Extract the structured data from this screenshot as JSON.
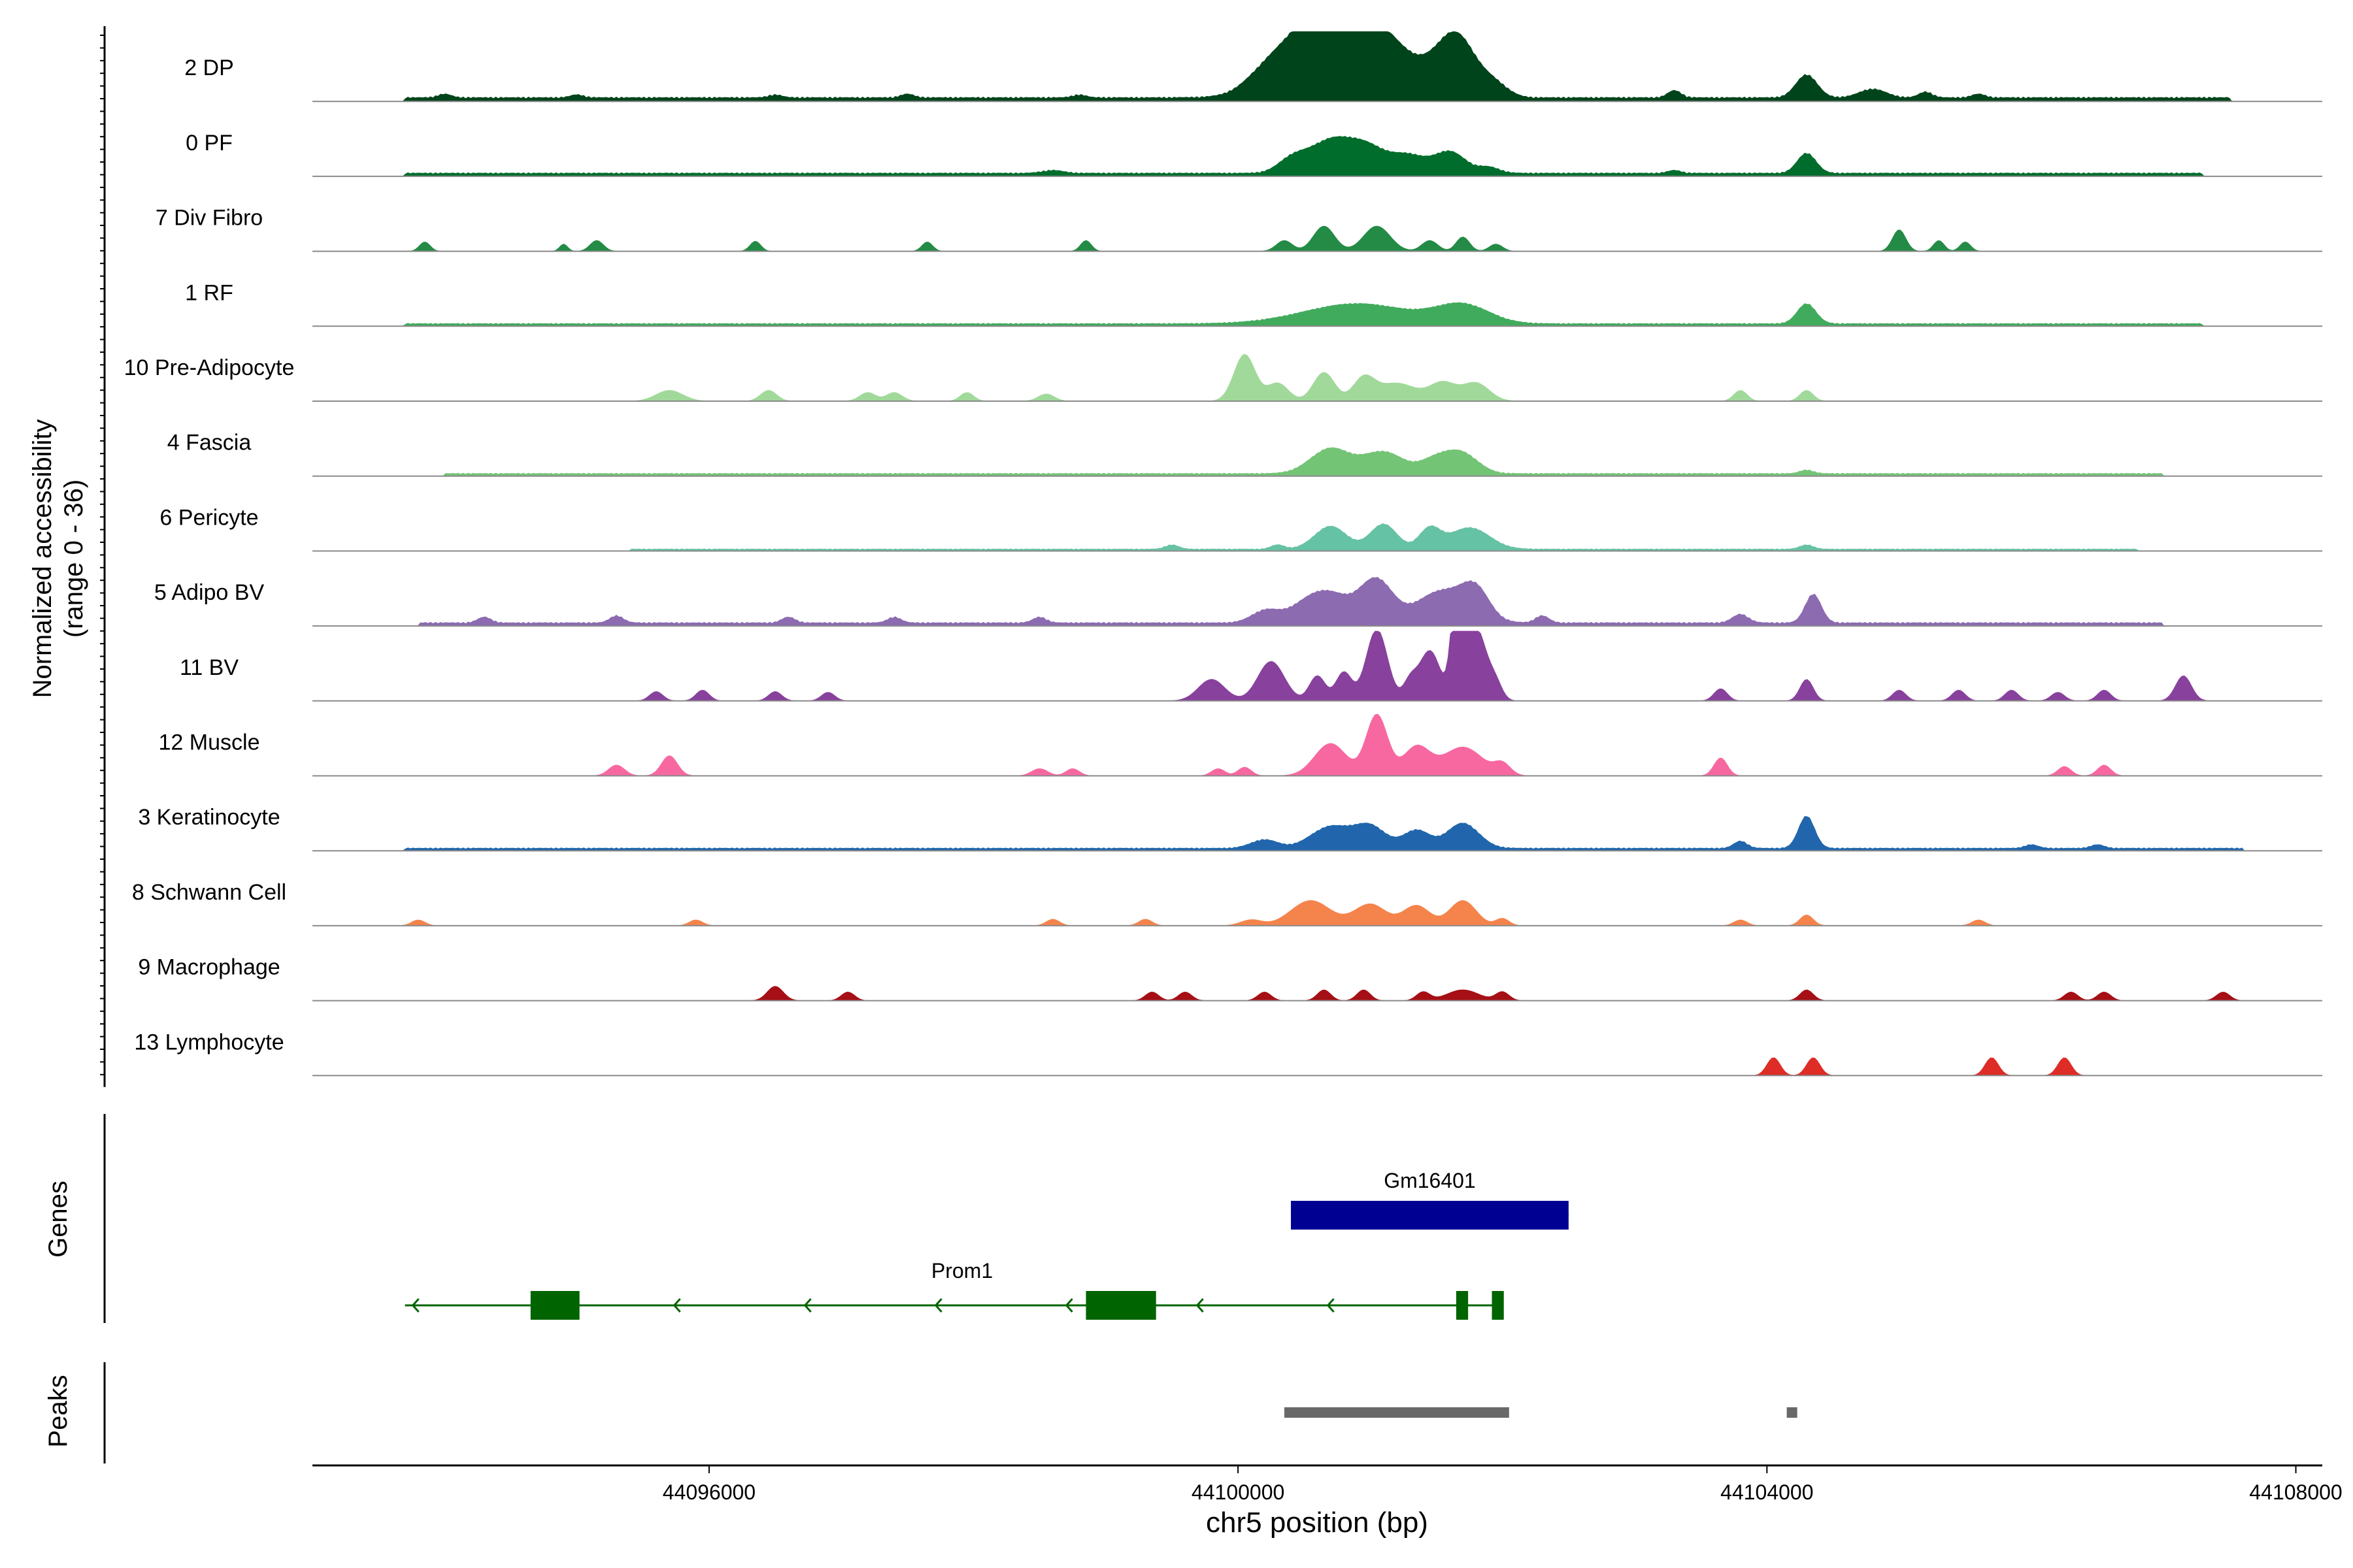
{
  "chart_data": {
    "type": "area",
    "title": "",
    "xlabel": "chr5 position (bp)",
    "ylabel_lines": [
      "Normalized accessibility",
      "(range 0 - 36)"
    ],
    "y_range": [
      0,
      36
    ],
    "xlim": [
      44093000,
      44108200
    ],
    "x_ticks": [
      44096000,
      44100000,
      44104000,
      44108000
    ],
    "x_tick_labels": [
      "44096000",
      "44100000",
      "44104000",
      "44108000"
    ],
    "panel_labels": {
      "genes": "Genes",
      "peaks": "Peaks"
    },
    "tracks": [
      {
        "name": "2 DP",
        "color": "#00441b",
        "baseline": [
          [
            44093700,
            44107500,
            0.6
          ]
        ],
        "peaks": [
          [
            44100700,
            0.32,
            7.5
          ],
          [
            44100550,
            0.2,
            4.5
          ],
          [
            44100950,
            0.18,
            5
          ],
          [
            44101250,
            0.2,
            4
          ],
          [
            44101650,
            0.15,
            8.5
          ],
          [
            44100200,
            0.15,
            2
          ],
          [
            44101950,
            0.1,
            1.5
          ],
          [
            44103300,
            0.05,
            1
          ],
          [
            44104300,
            0.08,
            3.2
          ],
          [
            44104800,
            0.1,
            1.2
          ],
          [
            44105200,
            0.05,
            0.8
          ],
          [
            44094000,
            0.05,
            0.5
          ],
          [
            44095000,
            0.05,
            0.4
          ],
          [
            44096500,
            0.05,
            0.4
          ],
          [
            44097500,
            0.05,
            0.5
          ],
          [
            44098800,
            0.05,
            0.4
          ],
          [
            44105600,
            0.05,
            0.5
          ]
        ]
      },
      {
        "name": "0 PF",
        "color": "#006d2c",
        "baseline": [
          [
            44093700,
            44107300,
            0.5
          ]
        ],
        "peaks": [
          [
            44100700,
            0.18,
            4.5
          ],
          [
            44101000,
            0.15,
            3
          ],
          [
            44101300,
            0.12,
            2.2
          ],
          [
            44101600,
            0.12,
            3
          ],
          [
            44100400,
            0.1,
            1.5
          ],
          [
            44101900,
            0.08,
            0.8
          ],
          [
            44104300,
            0.07,
            2.8
          ],
          [
            44098600,
            0.08,
            0.4
          ],
          [
            44103300,
            0.05,
            0.4
          ]
        ]
      },
      {
        "name": "7 Div Fibro",
        "color": "#238b45",
        "baseline": [],
        "peaks": [
          [
            44093850,
            0.04,
            1.3
          ],
          [
            44094900,
            0.03,
            1
          ],
          [
            44095150,
            0.05,
            1.5
          ],
          [
            44096350,
            0.04,
            1.4
          ],
          [
            44097650,
            0.04,
            1.3
          ],
          [
            44098850,
            0.04,
            1.5
          ],
          [
            44100350,
            0.06,
            1.5
          ],
          [
            44100650,
            0.08,
            3.5
          ],
          [
            44101050,
            0.1,
            3.5
          ],
          [
            44101450,
            0.06,
            1.5
          ],
          [
            44101700,
            0.05,
            2
          ],
          [
            44101950,
            0.05,
            1
          ],
          [
            44105000,
            0.05,
            3
          ],
          [
            44105300,
            0.04,
            1.5
          ],
          [
            44105500,
            0.04,
            1.3
          ]
        ]
      },
      {
        "name": "1 RF",
        "color": "#41ab5d",
        "baseline": [
          [
            44093700,
            44107300,
            0.4
          ]
        ],
        "peaks": [
          [
            44100900,
            0.4,
            2.8
          ],
          [
            44101700,
            0.2,
            2.5
          ],
          [
            44104300,
            0.07,
            2.8
          ]
        ]
      },
      {
        "name": "10 Pre-Adipocyte",
        "color": "#a1d99b",
        "baseline": [],
        "peaks": [
          [
            44095700,
            0.1,
            1.5
          ],
          [
            44096450,
            0.06,
            1.5
          ],
          [
            44097200,
            0.06,
            1.2
          ],
          [
            44097400,
            0.06,
            1.2
          ],
          [
            44097950,
            0.05,
            1.2
          ],
          [
            44098550,
            0.06,
            1
          ],
          [
            44100050,
            0.08,
            6.5
          ],
          [
            44100300,
            0.08,
            2.5
          ],
          [
            44100650,
            0.08,
            4
          ],
          [
            44100950,
            0.08,
            3
          ],
          [
            44101200,
            0.15,
            2.5
          ],
          [
            44101550,
            0.1,
            2.5
          ],
          [
            44101800,
            0.1,
            2.5
          ],
          [
            44103800,
            0.05,
            1.5
          ],
          [
            44104300,
            0.05,
            1.5
          ]
        ]
      },
      {
        "name": "4 Fascia",
        "color": "#74c476",
        "baseline": [
          [
            44094000,
            44107000,
            0.4
          ]
        ],
        "peaks": [
          [
            44100700,
            0.15,
            3.5
          ],
          [
            44101100,
            0.15,
            3
          ],
          [
            44101500,
            0.12,
            2
          ],
          [
            44101700,
            0.12,
            2.6
          ],
          [
            44104300,
            0.05,
            0.5
          ]
        ]
      },
      {
        "name": "6 Pericyte",
        "color": "#66c2a4",
        "baseline": [
          [
            44095400,
            44106800,
            0.3
          ]
        ],
        "peaks": [
          [
            44100700,
            0.12,
            3.2
          ],
          [
            44101100,
            0.1,
            3.5
          ],
          [
            44101450,
            0.08,
            2.8
          ],
          [
            44101750,
            0.15,
            3
          ],
          [
            44099500,
            0.05,
            0.6
          ],
          [
            44100300,
            0.05,
            0.6
          ],
          [
            44104300,
            0.05,
            0.6
          ]
        ]
      },
      {
        "name": "5 Adipo BV",
        "color": "#8c6bb1",
        "baseline": [
          [
            44093800,
            44107000,
            0.5
          ]
        ],
        "peaks": [
          [
            44100650,
            0.2,
            4.5
          ],
          [
            44101050,
            0.12,
            5.5
          ],
          [
            44101550,
            0.2,
            4.5
          ],
          [
            44101800,
            0.1,
            3.5
          ],
          [
            44100200,
            0.1,
            1.5
          ],
          [
            44104350,
            0.06,
            4
          ],
          [
            44103800,
            0.06,
            1.2
          ],
          [
            44102300,
            0.05,
            1
          ],
          [
            44094300,
            0.05,
            0.8
          ],
          [
            44095300,
            0.05,
            1
          ],
          [
            44096600,
            0.05,
            0.8
          ],
          [
            44097400,
            0.05,
            0.8
          ],
          [
            44098500,
            0.05,
            0.8
          ]
        ]
      },
      {
        "name": "11 BV",
        "color": "#88419d",
        "baseline": [],
        "peaks": [
          [
            44099800,
            0.1,
            3
          ],
          [
            44100250,
            0.1,
            5.5
          ],
          [
            44100600,
            0.06,
            3.5
          ],
          [
            44100800,
            0.06,
            4
          ],
          [
            44101050,
            0.08,
            10
          ],
          [
            44101300,
            0.05,
            2.5
          ],
          [
            44101450,
            0.08,
            7
          ],
          [
            44101700,
            0.05,
            6
          ],
          [
            44101800,
            0.08,
            10
          ],
          [
            44101650,
            0.04,
            12
          ],
          [
            44101950,
            0.05,
            2
          ],
          [
            44095600,
            0.05,
            1.3
          ],
          [
            44095950,
            0.05,
            1.5
          ],
          [
            44096500,
            0.05,
            1.3
          ],
          [
            44096900,
            0.05,
            1.2
          ],
          [
            44103650,
            0.05,
            1.7
          ],
          [
            44104300,
            0.05,
            3
          ],
          [
            44105000,
            0.05,
            1.5
          ],
          [
            44105450,
            0.05,
            1.5
          ],
          [
            44105850,
            0.05,
            1.5
          ],
          [
            44106200,
            0.05,
            1.2
          ],
          [
            44106550,
            0.05,
            1.5
          ],
          [
            44107150,
            0.06,
            3.5
          ]
        ]
      },
      {
        "name": "12 Muscle",
        "color": "#f768a1",
        "baseline": [],
        "peaks": [
          [
            44095300,
            0.06,
            1.5
          ],
          [
            44095700,
            0.06,
            2.8
          ],
          [
            44098500,
            0.06,
            1
          ],
          [
            44098750,
            0.05,
            1
          ],
          [
            44099850,
            0.05,
            1
          ],
          [
            44100050,
            0.05,
            1.2
          ],
          [
            44100700,
            0.12,
            4.5
          ],
          [
            44101050,
            0.08,
            8.5
          ],
          [
            44101350,
            0.1,
            4
          ],
          [
            44101700,
            0.15,
            4
          ],
          [
            44102000,
            0.06,
            1.5
          ],
          [
            44103650,
            0.05,
            2.5
          ],
          [
            44106250,
            0.05,
            1.3
          ],
          [
            44106550,
            0.05,
            1.5
          ]
        ]
      },
      {
        "name": "3 Keratinocyte",
        "color": "#2166ac",
        "baseline": [
          [
            44093700,
            44107600,
            0.4
          ]
        ],
        "peaks": [
          [
            44100700,
            0.15,
            3
          ],
          [
            44101000,
            0.12,
            3
          ],
          [
            44101350,
            0.1,
            2.5
          ],
          [
            44101700,
            0.12,
            3.5
          ],
          [
            44100200,
            0.1,
            1.2
          ],
          [
            44104300,
            0.06,
            4.5
          ],
          [
            44103800,
            0.05,
            1
          ],
          [
            44106000,
            0.05,
            0.5
          ],
          [
            44106500,
            0.05,
            0.5
          ]
        ]
      },
      {
        "name": "8 Schwann Cell",
        "color": "#f4844c",
        "baseline": [],
        "peaks": [
          [
            44093800,
            0.05,
            0.8
          ],
          [
            44095900,
            0.05,
            0.8
          ],
          [
            44098600,
            0.05,
            0.9
          ],
          [
            44099300,
            0.05,
            0.9
          ],
          [
            44100550,
            0.15,
            3.5
          ],
          [
            44101000,
            0.12,
            3
          ],
          [
            44101350,
            0.1,
            2.8
          ],
          [
            44101700,
            0.1,
            3.5
          ],
          [
            44102000,
            0.05,
            1
          ],
          [
            44103800,
            0.05,
            0.8
          ],
          [
            44104300,
            0.05,
            1.5
          ],
          [
            44105600,
            0.05,
            0.8
          ],
          [
            44100100,
            0.08,
            0.8
          ]
        ]
      },
      {
        "name": "9 Macrophage",
        "color": "#a50f15",
        "baseline": [],
        "peaks": [
          [
            44096500,
            0.06,
            2
          ],
          [
            44097050,
            0.05,
            1.2
          ],
          [
            44099350,
            0.05,
            1.2
          ],
          [
            44099600,
            0.05,
            1.2
          ],
          [
            44100200,
            0.05,
            1.2
          ],
          [
            44100650,
            0.05,
            1.5
          ],
          [
            44100950,
            0.05,
            1.5
          ],
          [
            44101400,
            0.05,
            1.2
          ],
          [
            44101700,
            0.12,
            1.5
          ],
          [
            44102000,
            0.05,
            1.2
          ],
          [
            44104300,
            0.05,
            1.5
          ],
          [
            44106300,
            0.05,
            1.2
          ],
          [
            44106550,
            0.05,
            1.2
          ],
          [
            44107450,
            0.05,
            1.2
          ]
        ]
      },
      {
        "name": "13 Lymphocyte",
        "color": "#de2d26",
        "baseline": [],
        "peaks": [
          [
            44104050,
            0.05,
            2.5
          ],
          [
            44104350,
            0.05,
            2.5
          ],
          [
            44105700,
            0.05,
            2.5
          ],
          [
            44106250,
            0.05,
            2.5
          ]
        ]
      }
    ],
    "genes": [
      {
        "name": "Gm16401",
        "start": 44100400,
        "end": 44102500,
        "strand": "+",
        "color": "#000093",
        "exons": [
          [
            44100400,
            44102500
          ]
        ]
      },
      {
        "name": "Prom1",
        "start": 44093700,
        "end": 44102000,
        "strand": "-",
        "color": "#006400",
        "exons": [
          [
            44094650,
            44095020
          ],
          [
            44098850,
            44099380
          ],
          [
            44101650,
            44101740
          ],
          [
            44101920,
            44102010
          ]
        ]
      }
    ],
    "peaks": [
      [
        44100350,
        44102050
      ],
      [
        44104150,
        44104220
      ]
    ],
    "peak_color": "#696969"
  }
}
